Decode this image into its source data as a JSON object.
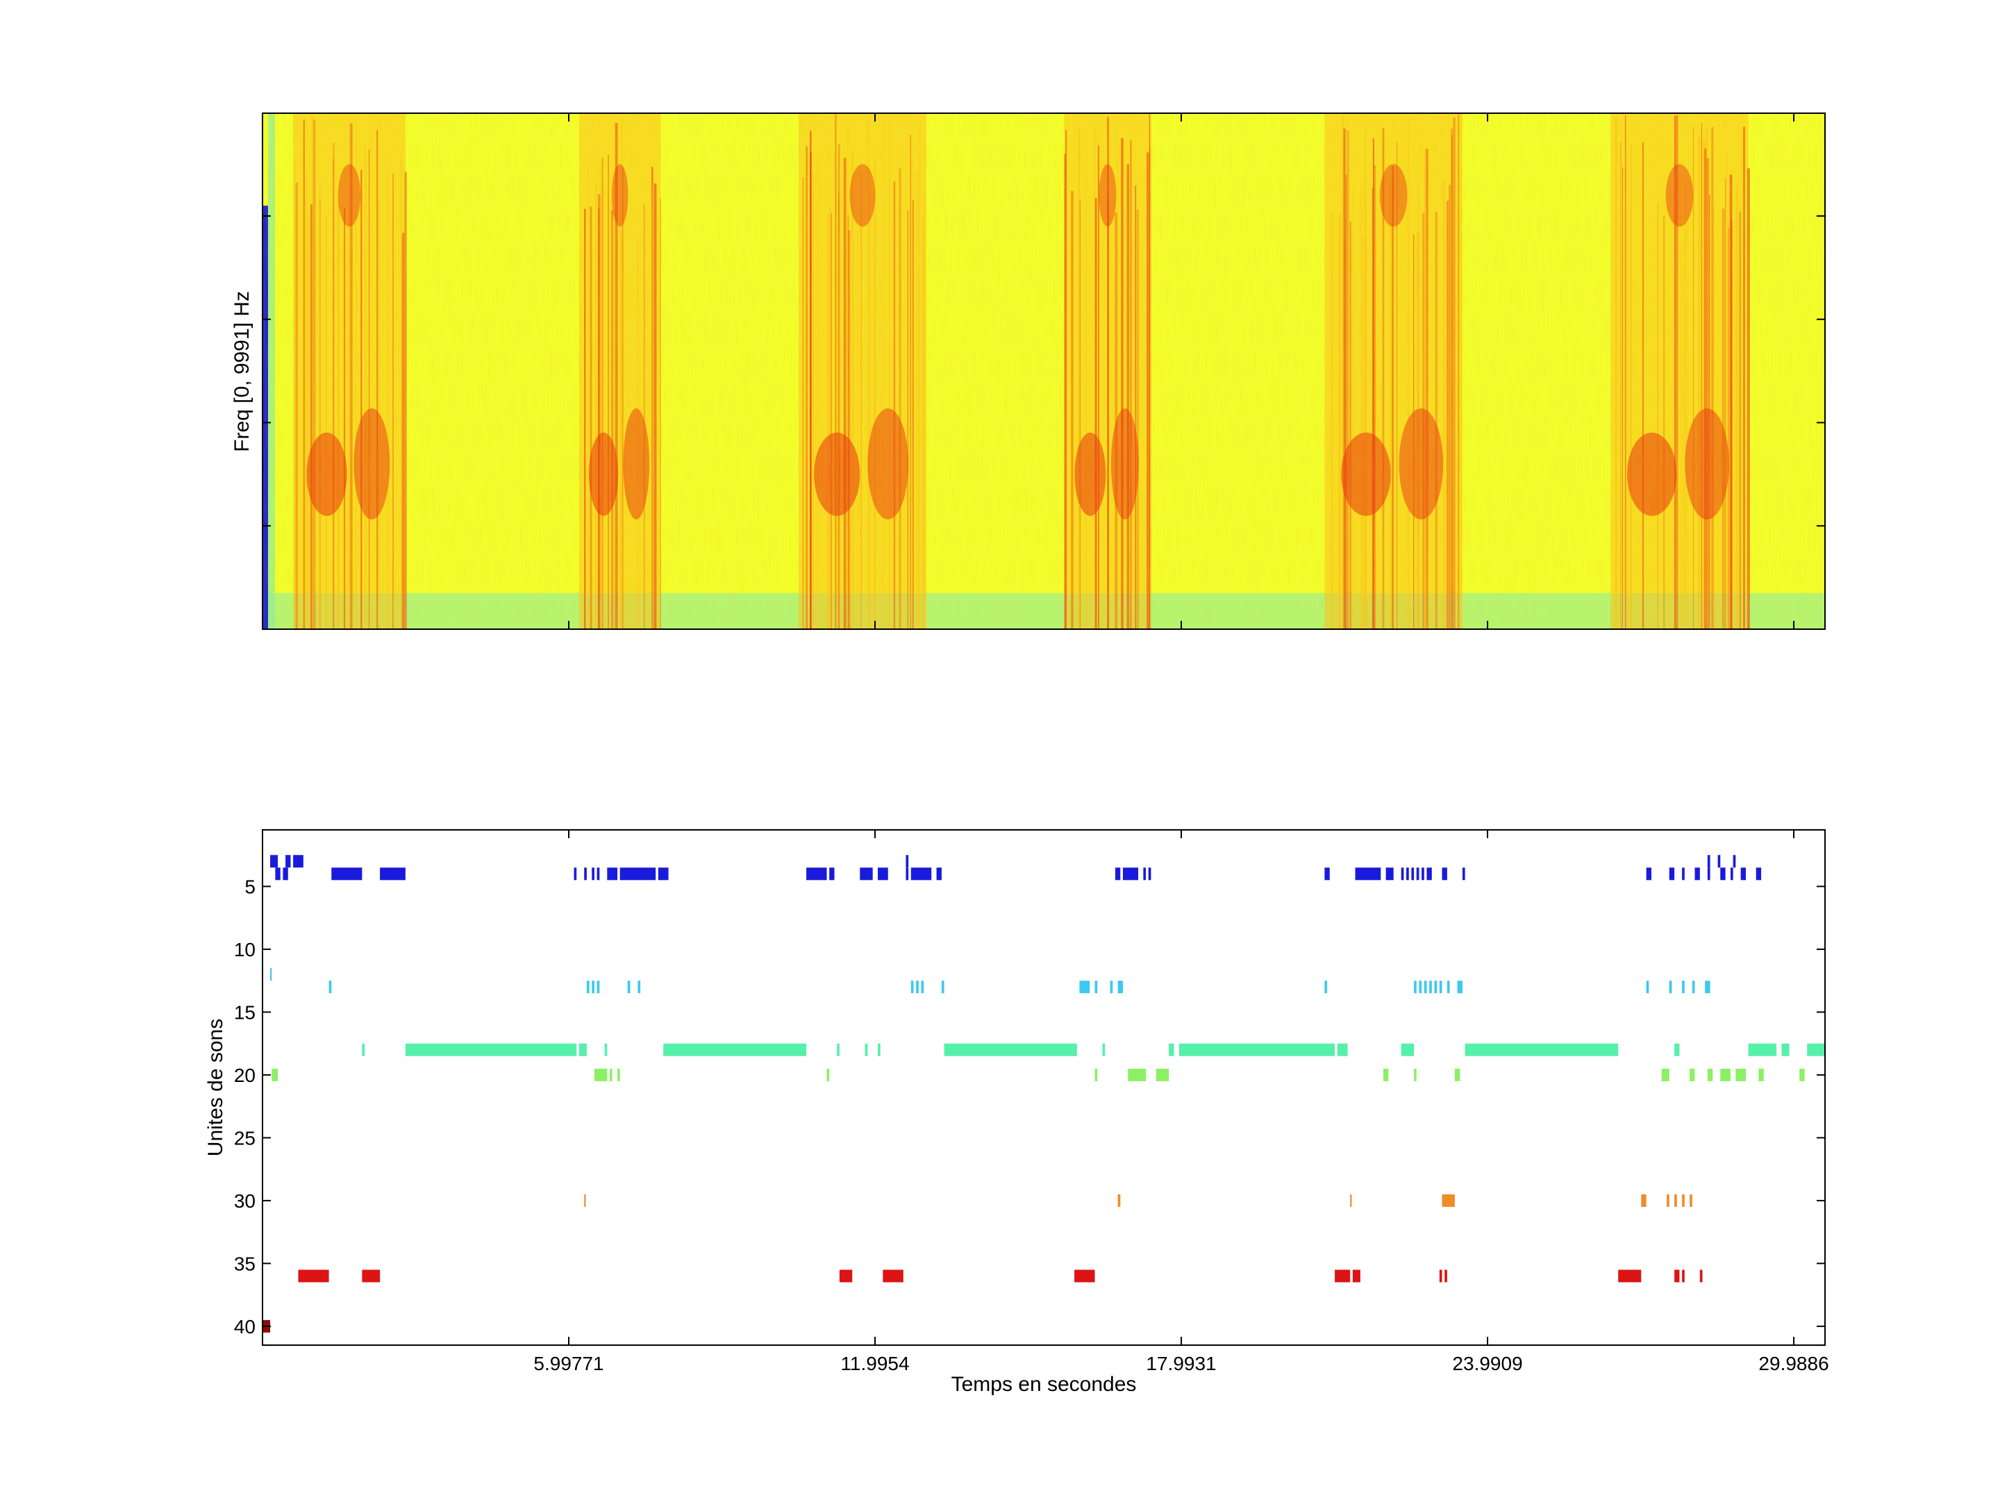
{
  "chart_data": [
    {
      "type": "heatmap",
      "ylabel": "Freq [0, 9991] Hz",
      "xlabel": "",
      "xlim": [
        0,
        30.6
      ],
      "ylim": [
        0,
        9991
      ],
      "colormap": "jet",
      "colors": {
        "background": "#f2ff2a",
        "mid": "#fbc21a",
        "hot": "#e9320f",
        "low": "#8cf0a0",
        "left_strip": "#1e28c8"
      },
      "energy_bursts": [
        {
          "start": 0.6,
          "end": 2.8
        },
        {
          "start": 6.2,
          "end": 7.8
        },
        {
          "start": 10.5,
          "end": 13.0
        },
        {
          "start": 15.7,
          "end": 17.4
        },
        {
          "start": 20.8,
          "end": 23.5
        },
        {
          "start": 26.4,
          "end": 29.1
        }
      ]
    },
    {
      "type": "scatter",
      "title": "",
      "xlabel": "Temps en secondes",
      "ylabel": "Unites de sons",
      "xlim": [
        0,
        30.6
      ],
      "ylim": [
        41.5,
        0.5
      ],
      "xticks": [
        "5.99771",
        "11.9954",
        "17.9931",
        "23.9909",
        "29.9886"
      ],
      "yticks": [
        "5",
        "10",
        "15",
        "20",
        "25",
        "30",
        "35",
        "40"
      ],
      "series": [
        {
          "unit": 3,
          "color": "#1a1adc",
          "segments": [
            [
              0.15,
              0.3
            ],
            [
              0.45,
              0.55
            ],
            [
              0.6,
              0.8
            ],
            [
              12.6,
              12.65
            ],
            [
              28.3,
              28.35
            ],
            [
              28.5,
              28.55
            ],
            [
              28.8,
              28.85
            ]
          ]
        },
        {
          "unit": 4,
          "color": "#1a1adc",
          "segments": [
            [
              0.25,
              0.35
            ],
            [
              0.4,
              0.5
            ],
            [
              1.35,
              1.95
            ],
            [
              2.3,
              2.8
            ],
            [
              6.1,
              6.15
            ],
            [
              6.3,
              6.35
            ],
            [
              6.45,
              6.5
            ],
            [
              6.55,
              6.6
            ],
            [
              6.75,
              6.95
            ],
            [
              7.0,
              7.7
            ],
            [
              7.75,
              7.95
            ],
            [
              10.65,
              11.05
            ],
            [
              11.1,
              11.2
            ],
            [
              11.7,
              11.95
            ],
            [
              12.05,
              12.25
            ],
            [
              12.6,
              12.65
            ],
            [
              12.7,
              13.1
            ],
            [
              13.2,
              13.3
            ],
            [
              16.7,
              16.8
            ],
            [
              16.85,
              17.15
            ],
            [
              17.25,
              17.3
            ],
            [
              17.35,
              17.4
            ],
            [
              20.8,
              20.9
            ],
            [
              21.4,
              21.9
            ],
            [
              22.0,
              22.15
            ],
            [
              22.3,
              22.35
            ],
            [
              22.4,
              22.45
            ],
            [
              22.5,
              22.55
            ],
            [
              22.6,
              22.65
            ],
            [
              22.7,
              22.75
            ],
            [
              22.8,
              22.9
            ],
            [
              23.1,
              23.2
            ],
            [
              23.5,
              23.55
            ],
            [
              27.1,
              27.2
            ],
            [
              27.55,
              27.65
            ],
            [
              27.8,
              27.85
            ],
            [
              28.05,
              28.15
            ],
            [
              28.3,
              28.35
            ],
            [
              28.55,
              28.65
            ],
            [
              28.75,
              28.8
            ],
            [
              28.95,
              29.05
            ],
            [
              29.25,
              29.35
            ]
          ]
        },
        {
          "unit": 12,
          "color": "#3cc8f0",
          "segments": [
            [
              0.15,
              0.18
            ]
          ]
        },
        {
          "unit": 13,
          "color": "#3cc8f0",
          "segments": [
            [
              1.3,
              1.35
            ],
            [
              6.35,
              6.4
            ],
            [
              6.45,
              6.5
            ],
            [
              6.55,
              6.6
            ],
            [
              7.15,
              7.2
            ],
            [
              7.35,
              7.4
            ],
            [
              12.7,
              12.75
            ],
            [
              12.8,
              12.85
            ],
            [
              12.9,
              12.95
            ],
            [
              13.3,
              13.35
            ],
            [
              16.0,
              16.2
            ],
            [
              16.3,
              16.35
            ],
            [
              16.6,
              16.65
            ],
            [
              16.75,
              16.85
            ],
            [
              20.8,
              20.85
            ],
            [
              22.55,
              22.6
            ],
            [
              22.65,
              22.7
            ],
            [
              22.75,
              22.8
            ],
            [
              22.85,
              22.9
            ],
            [
              22.95,
              23.0
            ],
            [
              23.05,
              23.1
            ],
            [
              23.2,
              23.25
            ],
            [
              23.4,
              23.5
            ],
            [
              27.1,
              27.15
            ],
            [
              27.55,
              27.6
            ],
            [
              27.8,
              27.85
            ],
            [
              28.0,
              28.05
            ],
            [
              28.25,
              28.35
            ]
          ]
        },
        {
          "unit": 18,
          "color": "#55f0aa",
          "segments": [
            [
              1.95,
              2.0
            ],
            [
              2.8,
              6.15
            ],
            [
              6.2,
              6.35
            ],
            [
              6.7,
              6.75
            ],
            [
              7.85,
              10.65
            ],
            [
              11.25,
              11.3
            ],
            [
              11.8,
              11.85
            ],
            [
              12.05,
              12.1
            ],
            [
              13.35,
              15.95
            ],
            [
              16.45,
              16.5
            ],
            [
              17.75,
              17.85
            ],
            [
              17.95,
              21.0
            ],
            [
              21.05,
              21.25
            ],
            [
              22.3,
              22.55
            ],
            [
              23.55,
              26.55
            ],
            [
              27.65,
              27.75
            ],
            [
              29.1,
              29.65
            ],
            [
              29.75,
              29.9
            ],
            [
              30.25,
              30.6
            ]
          ]
        },
        {
          "unit": 20,
          "color": "#8cf064",
          "segments": [
            [
              0.18,
              0.3
            ],
            [
              6.5,
              6.75
            ],
            [
              6.8,
              6.85
            ],
            [
              6.95,
              7.0
            ],
            [
              11.05,
              11.1
            ],
            [
              16.3,
              16.35
            ],
            [
              16.95,
              17.3
            ],
            [
              17.5,
              17.75
            ],
            [
              21.95,
              22.05
            ],
            [
              22.55,
              22.6
            ],
            [
              23.35,
              23.45
            ],
            [
              27.4,
              27.55
            ],
            [
              27.95,
              28.05
            ],
            [
              28.3,
              28.4
            ],
            [
              28.55,
              28.75
            ],
            [
              28.85,
              29.05
            ],
            [
              29.3,
              29.4
            ],
            [
              30.1,
              30.2
            ]
          ]
        },
        {
          "unit": 30,
          "color": "#f08c28",
          "segments": [
            [
              6.3,
              6.33
            ],
            [
              16.75,
              16.8
            ],
            [
              21.3,
              21.33
            ],
            [
              23.1,
              23.35
            ],
            [
              27.0,
              27.1
            ],
            [
              27.5,
              27.55
            ],
            [
              27.65,
              27.7
            ],
            [
              27.8,
              27.85
            ],
            [
              27.95,
              28.0
            ]
          ]
        },
        {
          "unit": 36,
          "color": "#dc1414",
          "segments": [
            [
              0.7,
              1.3
            ],
            [
              1.95,
              2.3
            ],
            [
              11.3,
              11.55
            ],
            [
              12.15,
              12.55
            ],
            [
              15.9,
              16.3
            ],
            [
              21.0,
              21.3
            ],
            [
              21.35,
              21.5
            ],
            [
              23.05,
              23.1
            ],
            [
              23.15,
              23.2
            ],
            [
              26.55,
              27.0
            ],
            [
              27.65,
              27.75
            ],
            [
              27.8,
              27.85
            ],
            [
              28.15,
              28.2
            ]
          ]
        },
        {
          "unit": 40,
          "color": "#8c0a0a",
          "segments": [
            [
              0.0,
              0.15
            ]
          ]
        }
      ]
    }
  ]
}
